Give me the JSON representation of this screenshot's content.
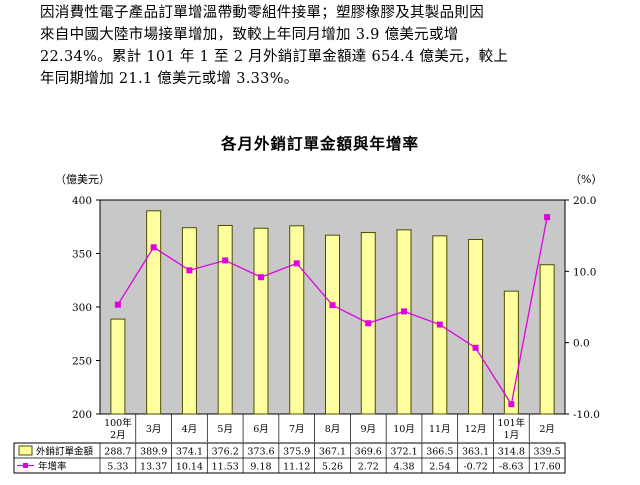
{
  "paragraph": [
    "因消費性電子產品訂單增溫帶動零組件接單；塑膠橡膠及其製品則因",
    "來自中國大陸市場接單增加，致較上年同月增加 3.9 億美元或增",
    "22.34%。累計 101 年 1 至 2 月外銷訂單金額達 654.4 億美元，較上",
    "年同期增加 21.1 億美元或增 3.33%。"
  ],
  "chart_data": {
    "type": "bar+line",
    "title": "各月外銷訂單金額與年增率",
    "left_unit": "（億美元）",
    "right_unit": "（%）",
    "categories": [
      [
        "100年",
        "2月"
      ],
      [
        "3月"
      ],
      [
        "4月"
      ],
      [
        "5月"
      ],
      [
        "6月"
      ],
      [
        "7月"
      ],
      [
        "8月"
      ],
      [
        "9月"
      ],
      [
        "10月"
      ],
      [
        "11月"
      ],
      [
        "12月"
      ],
      [
        "101年",
        "1月"
      ],
      [
        "2月"
      ]
    ],
    "left_axis": {
      "min": 200,
      "max": 400,
      "ticks": [
        "200",
        "250",
        "300",
        "350",
        "400"
      ]
    },
    "right_axis": {
      "min": -10,
      "max": 20,
      "ticks": [
        "-10.0",
        "0.0",
        "10.0",
        "20.0"
      ]
    },
    "grid": false,
    "series": [
      {
        "name": "外銷訂單金額",
        "kind": "bar",
        "axis": "left",
        "values": [
          288.7,
          389.9,
          374.1,
          376.2,
          373.6,
          375.9,
          367.1,
          369.6,
          372.1,
          366.5,
          363.1,
          314.8,
          339.5
        ],
        "labels": [
          "288.7",
          "389.9",
          "374.1",
          "376.2",
          "373.6",
          "375.9",
          "367.1",
          "369.6",
          "372.1",
          "366.5",
          "363.1",
          "314.8",
          "339.5"
        ]
      },
      {
        "name": "年增率",
        "kind": "line",
        "axis": "right",
        "values": [
          5.33,
          13.37,
          10.14,
          11.53,
          9.18,
          11.12,
          5.26,
          2.72,
          4.38,
          2.54,
          -0.72,
          -8.63,
          17.6
        ],
        "labels": [
          "5.33",
          "13.37",
          "10.14",
          "11.53",
          "9.18",
          "11.12",
          "5.26",
          "2.72",
          "4.38",
          "2.54",
          "-0.72",
          "-8.63",
          "17.60"
        ]
      }
    ],
    "colors": {
      "bar_fill": "#ffffa0",
      "bar_stroke": "#4d4d00",
      "line": "#e000e0",
      "plot_bg": "#c8c8c8"
    }
  }
}
